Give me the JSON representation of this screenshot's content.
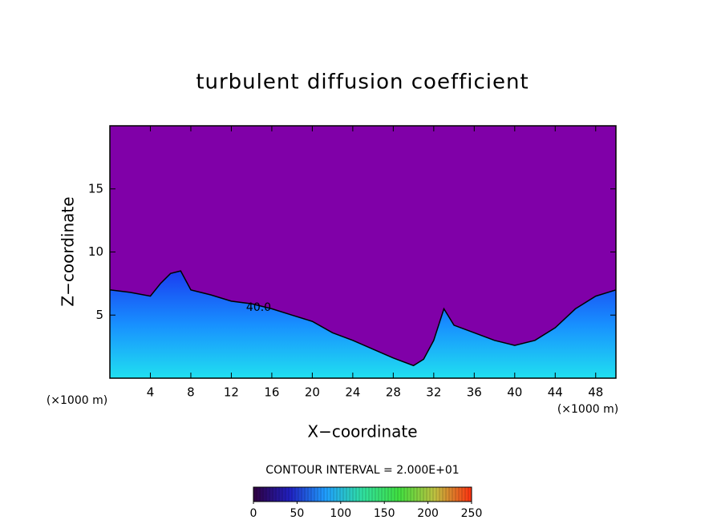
{
  "chart_data": {
    "type": "contour",
    "title": "turbulent diffusion coefficient",
    "x_label": "X−coordinate",
    "y_label": "Z−coordinate",
    "x_unit_label": "(×1000 m)",
    "xlim": [
      0,
      50
    ],
    "ylim": [
      0,
      20
    ],
    "xticks": [
      4,
      8,
      12,
      16,
      20,
      24,
      28,
      32,
      36,
      40,
      44,
      48
    ],
    "yticks": [
      5,
      10,
      15
    ],
    "background_color": "#8000a8",
    "field_colors": [
      "#1a3cf0",
      "#1890ff",
      "#20e0f0"
    ],
    "x": [
      0,
      2,
      4,
      5,
      6,
      7,
      8,
      10,
      12,
      14,
      16,
      18,
      20,
      22,
      24,
      26,
      28,
      30,
      31,
      32,
      33,
      34,
      36,
      38,
      40,
      42,
      44,
      46,
      48,
      50
    ],
    "values": [
      7,
      6.8,
      6.5,
      7.5,
      8.3,
      8.5,
      7,
      6.6,
      6.1,
      5.9,
      5.5,
      5,
      4.5,
      3.6,
      3,
      2.3,
      1.6,
      1,
      1.5,
      3,
      5.5,
      4.2,
      3.6,
      3,
      2.6,
      3,
      4,
      5.5,
      6.5,
      7
    ],
    "contour_labels": [
      {
        "value": 40,
        "label": "40.0",
        "x": 14.7,
        "y": 5.6
      }
    ],
    "colorbar": {
      "title": "CONTOUR INTERVAL = 2.000E+01",
      "lim": [
        0,
        250
      ],
      "ticks": [
        0,
        50,
        100,
        150,
        200,
        250
      ],
      "colors": [
        "#300040",
        "#2020c0",
        "#20a0ff",
        "#30e0a0",
        "#40e040",
        "#c0c040",
        "#ff3010"
      ]
    }
  }
}
